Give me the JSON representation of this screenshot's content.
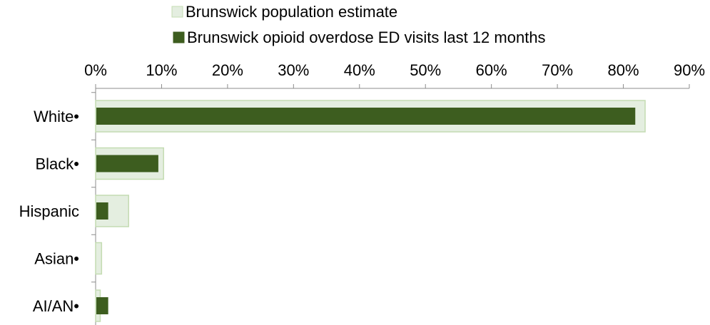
{
  "chart_data": {
    "type": "bar",
    "orientation": "horizontal",
    "categories": [
      "White•",
      "Black•",
      "Hispanic",
      "Asian•",
      "AI/AN•"
    ],
    "series": [
      {
        "name": "Brunswick population estimate",
        "values": [
          83.3,
          10.3,
          5.0,
          0.9,
          0.7
        ],
        "color": "#e4eee0",
        "stroke": "#c4dcb2"
      },
      {
        "name": "Brunswick opioid overdose ED visits last 12 months",
        "values": [
          81.7,
          9.4,
          1.8,
          0,
          1.8
        ],
        "color": "#3d5d1f"
      }
    ],
    "title": "",
    "xlabel": "",
    "ylabel": "",
    "xlim": [
      0,
      90
    ],
    "tick_values": [
      0,
      10,
      20,
      30,
      40,
      50,
      60,
      70,
      80,
      90
    ],
    "tick_labels": [
      "0%",
      "10%",
      "20%",
      "30%",
      "40%",
      "50%",
      "60%",
      "70%",
      "80%",
      "90%"
    ],
    "axis_position": "top",
    "grid": false,
    "legend_position": "top"
  }
}
